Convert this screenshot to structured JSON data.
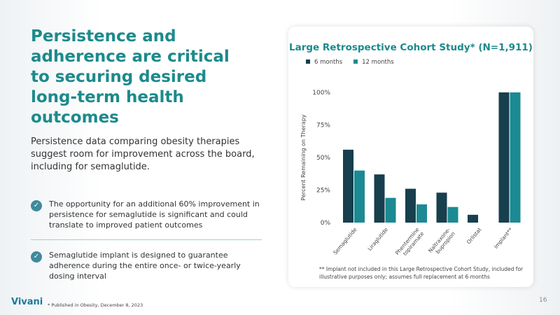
{
  "heading": "Persistence and adherence are critical to securing desired long-term health outcomes",
  "subtext": "Persistence data comparing obesity therapies suggest room for improvement across the board, including for semaglutide.",
  "bullets": [
    {
      "icon": "check-circle-icon",
      "text": "The opportunity for an additional 60% improvement in persistence for semaglutide is significant and could translate to improved patient outcomes"
    },
    {
      "icon": "check-circle-icon",
      "text": "Semaglutide implant is designed to guarantee adherence during the entire once- or twice-yearly dosing interval"
    }
  ],
  "footnote": "* Published in Obesity, December 8, 2023",
  "logo": "Vivani",
  "page_number": "16",
  "chart_note": "** Implant not included in this Large Retrospective Cohort Study, included for illustrative purposes only; assumes full replacement at 6 months",
  "colors": {
    "accent": "#1c8a8c",
    "six": "#173f4d",
    "twelve": "#1b8a93"
  },
  "chart_data": {
    "type": "bar",
    "title": "Large Retrospective Cohort Study* (N=1,911)",
    "ylabel": "Percent Remaining on Therapy",
    "xlabel": "",
    "ylim": [
      0,
      100
    ],
    "yticks": [
      "0%",
      "25%",
      "50%",
      "75%",
      "100%"
    ],
    "legend_position": "top-left",
    "categories": [
      "Semaglutide",
      "Liraglutide",
      "Phentermine topiramate",
      "Naltraxone-bupropion",
      "Orlistat",
      "Implant**"
    ],
    "category_lines": [
      [
        "Semaglutide"
      ],
      [
        "Liraglutide"
      ],
      [
        "Phentermine",
        "topiramate"
      ],
      [
        "Naltraxone-",
        "bupropion"
      ],
      [
        "Orlistat"
      ],
      [
        "Implant**"
      ]
    ],
    "series": [
      {
        "name": "6 months",
        "values": [
          56,
          37,
          26,
          23,
          6,
          100
        ]
      },
      {
        "name": "12 months",
        "values": [
          40,
          19,
          14,
          12,
          0,
          100
        ]
      }
    ]
  }
}
